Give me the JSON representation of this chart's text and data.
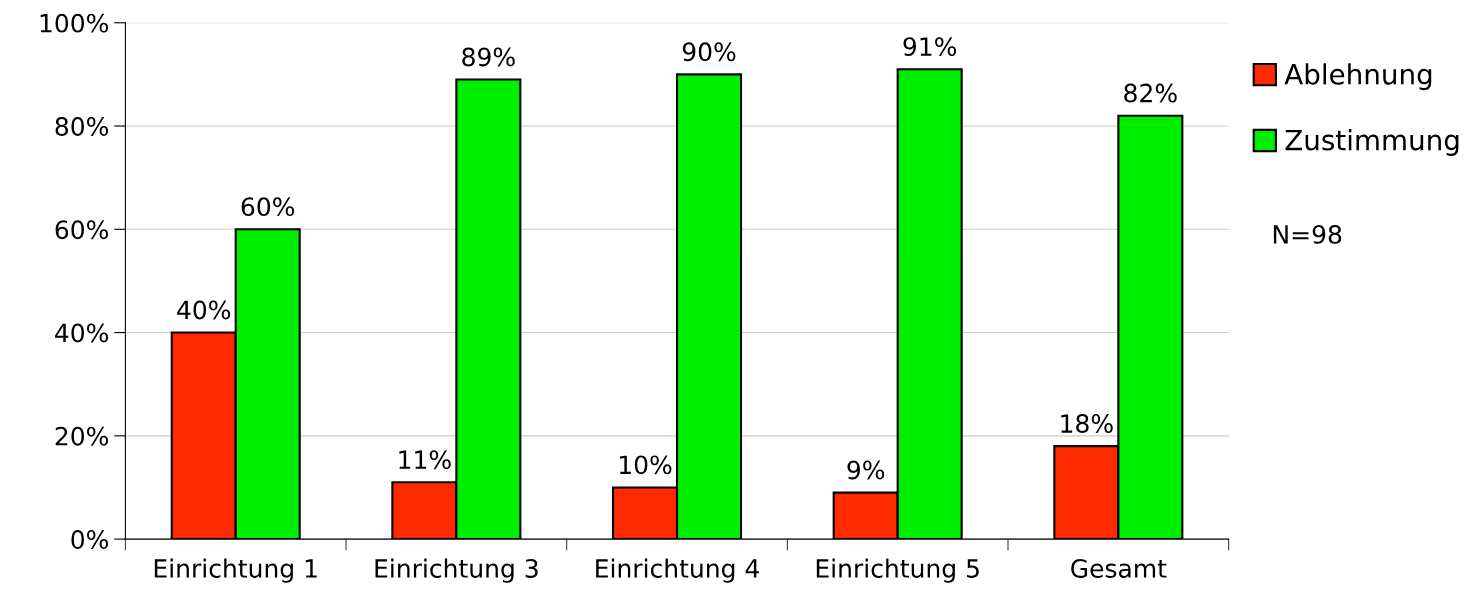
{
  "chart_data": {
    "type": "bar",
    "categories": [
      "Einrichtung 1",
      "Einrichtung 3",
      "Einrichtung 4",
      "Einrichtung 5",
      "Gesamt"
    ],
    "series": [
      {
        "name": "Ablehnung",
        "color": "#ff2a00",
        "values": [
          40,
          11,
          10,
          9,
          18
        ],
        "value_labels": [
          "40%",
          "11%",
          "10%",
          "9%",
          "18%"
        ]
      },
      {
        "name": "Zustimmung",
        "color": "#00ee00",
        "values": [
          60,
          89,
          90,
          91,
          82
        ],
        "value_labels": [
          "60%",
          "89%",
          "90%",
          "91%",
          "82%"
        ]
      }
    ],
    "ylim": [
      0,
      100
    ],
    "yticks": [
      {
        "value": 0,
        "label": "0%"
      },
      {
        "value": 20,
        "label": "20%"
      },
      {
        "value": 40,
        "label": "40%"
      },
      {
        "value": 60,
        "label": "60%"
      },
      {
        "value": 80,
        "label": "80%"
      },
      {
        "value": 100,
        "label": "100%"
      }
    ],
    "grid": "y",
    "legend": "top right",
    "annotations": [
      "N=98"
    ]
  }
}
